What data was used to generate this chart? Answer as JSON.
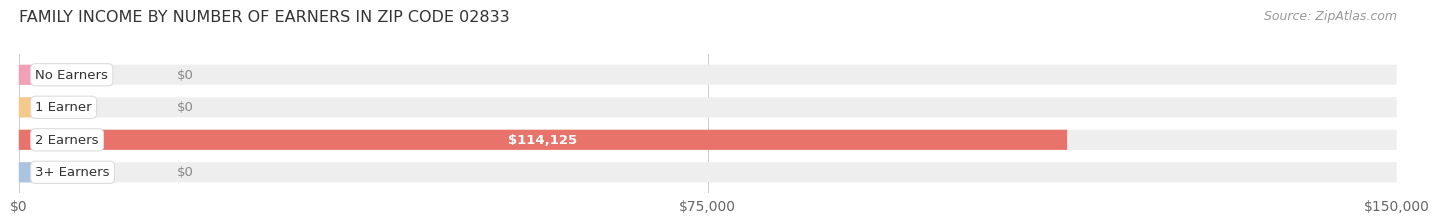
{
  "title": "FAMILY INCOME BY NUMBER OF EARNERS IN ZIP CODE 02833",
  "source": "Source: ZipAtlas.com",
  "categories": [
    "No Earners",
    "1 Earner",
    "2 Earners",
    "3+ Earners"
  ],
  "values": [
    0,
    0,
    114125,
    0
  ],
  "bar_colors": [
    "#f2a0b5",
    "#f5c98a",
    "#e8736a",
    "#a8c4e0"
  ],
  "bar_height": 0.62,
  "xlim": [
    0,
    150000
  ],
  "xticks": [
    0,
    75000,
    150000
  ],
  "xtick_labels": [
    "$0",
    "$75,000",
    "$150,000"
  ],
  "bg_bar_color": "#eeeeee",
  "title_fontsize": 11.5,
  "tick_fontsize": 10,
  "label_fontsize": 9.5,
  "value_fontsize": 9.5,
  "source_fontsize": 9
}
